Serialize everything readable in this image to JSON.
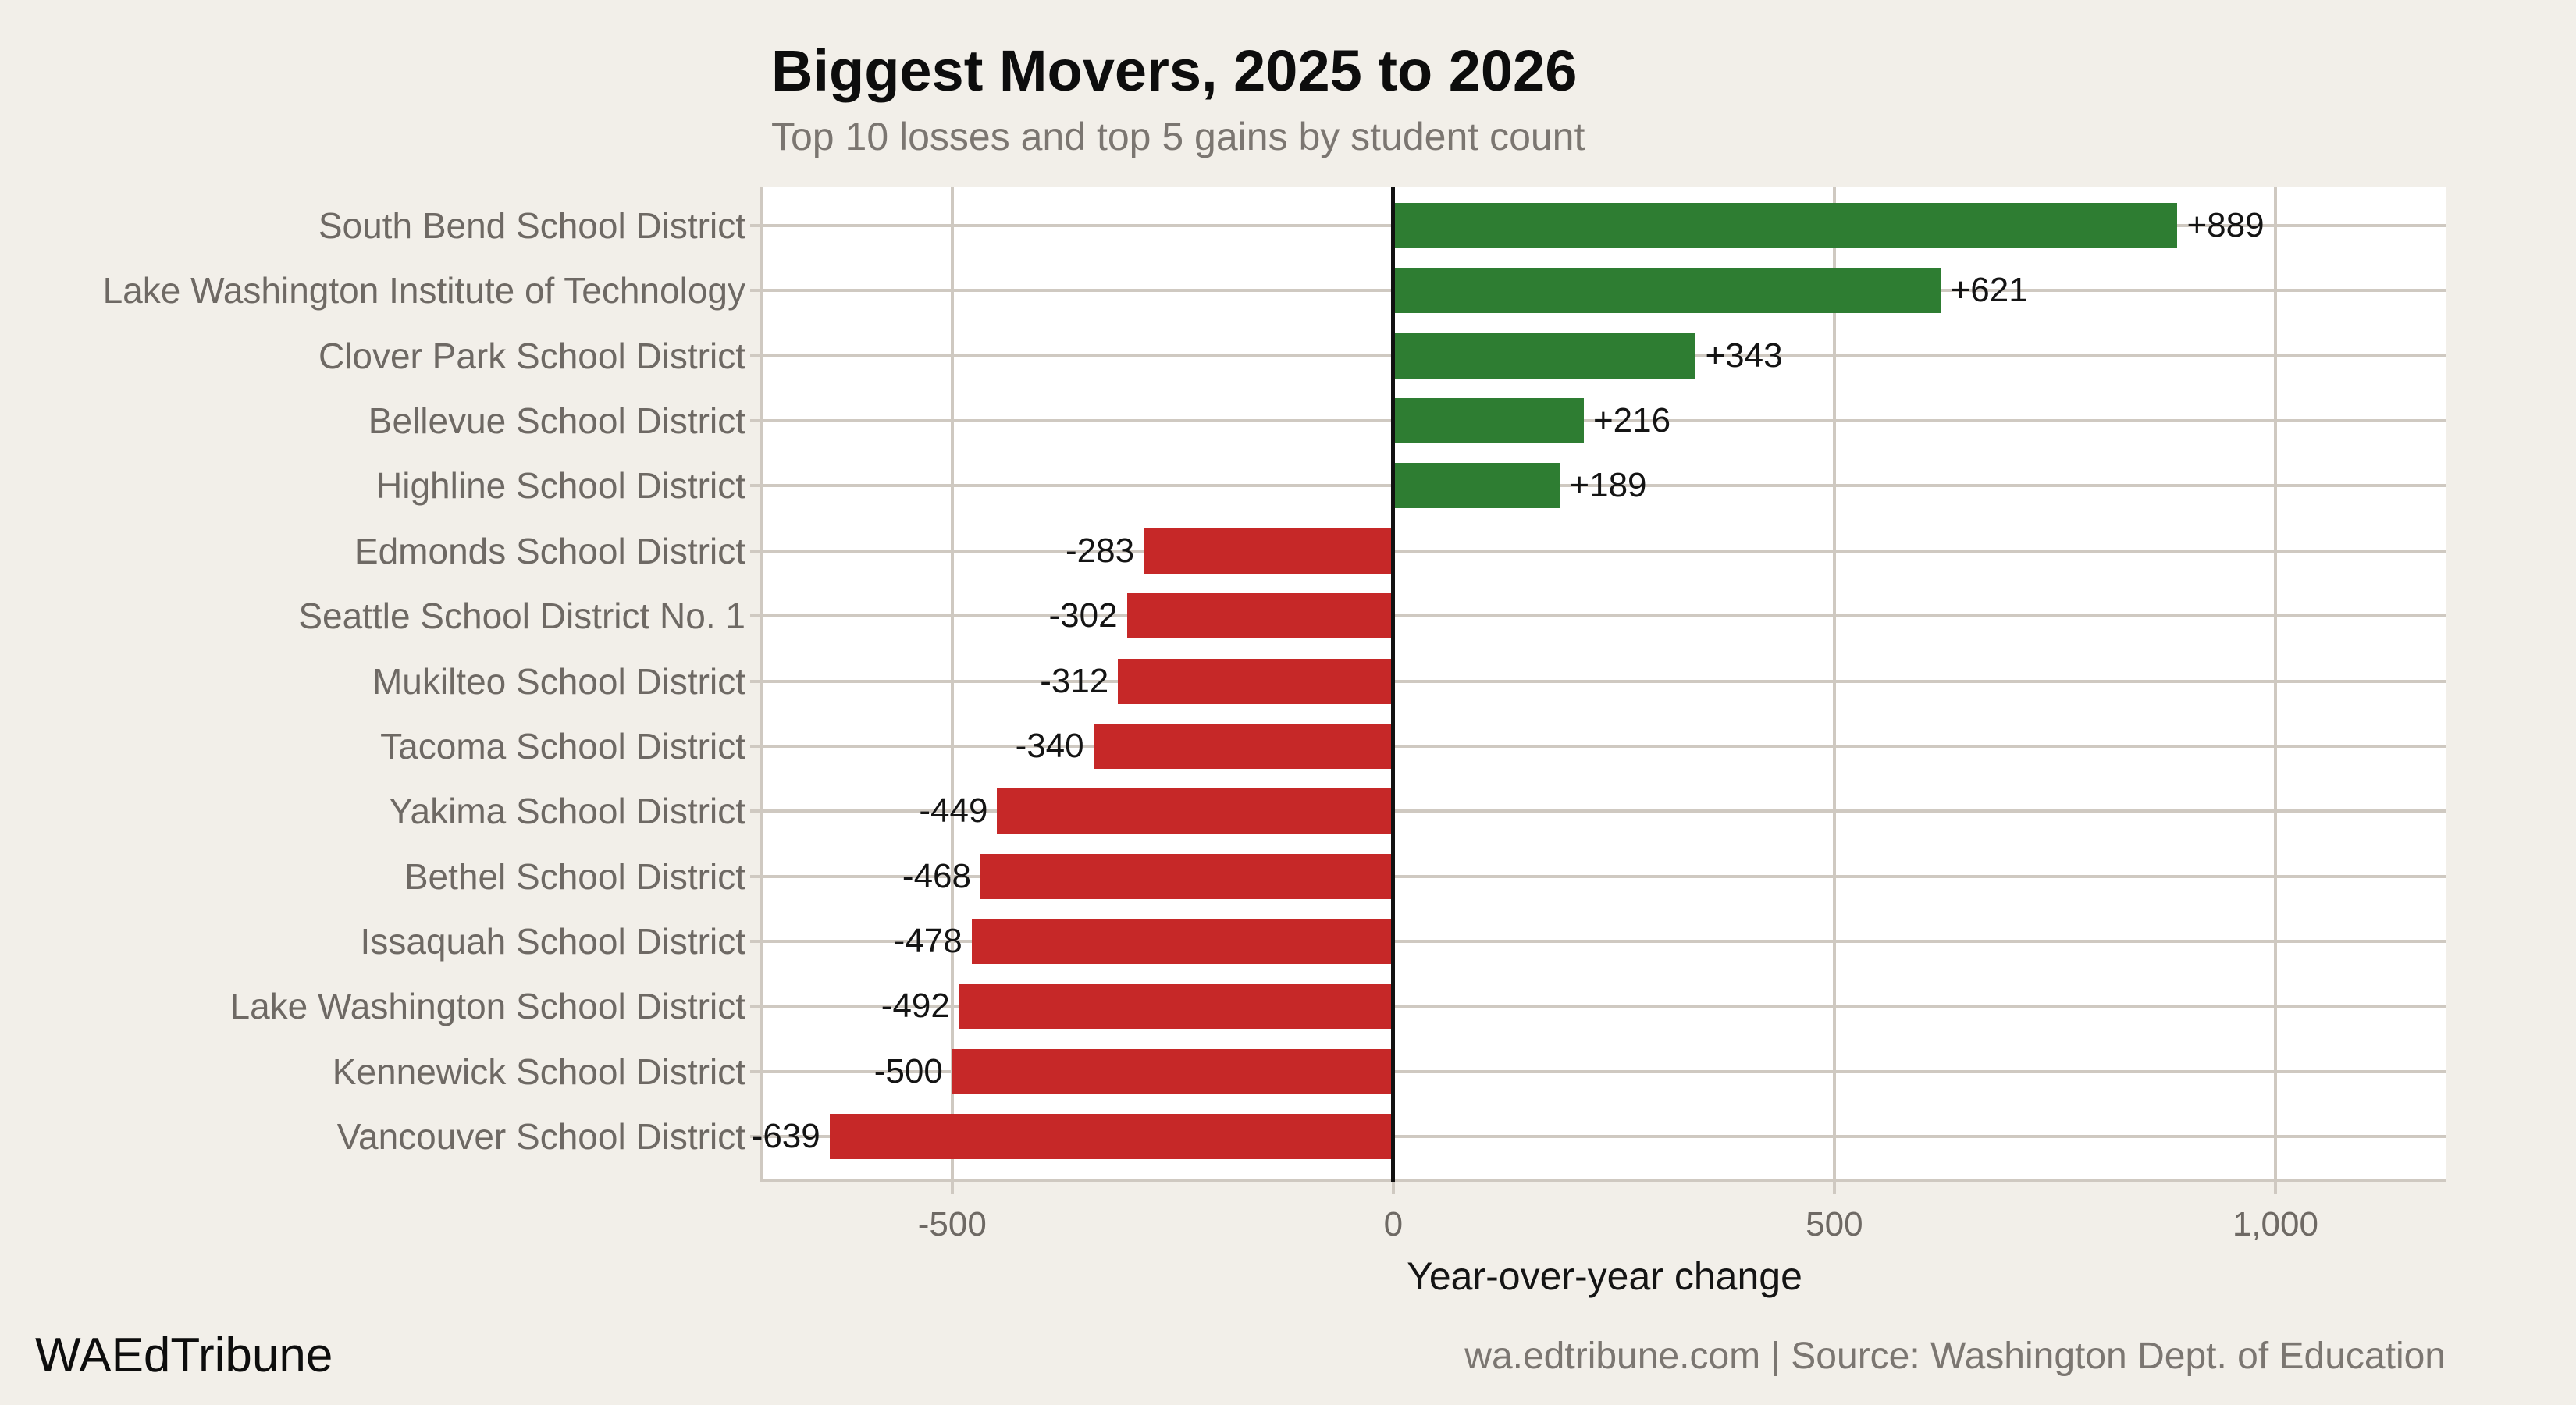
{
  "title": "Biggest Movers, 2025 to 2026",
  "subtitle": "Top 10 losses and top 5 gains by student count",
  "chart_data": {
    "type": "bar",
    "orientation": "horizontal",
    "title": "Biggest Movers, 2025 to 2026",
    "subtitle": "Top 10 losses and top 5 gains by student count",
    "xlabel": "Year-over-year change",
    "ylabel": "",
    "categories": [
      "South Bend School District",
      "Lake Washington Institute of Technology",
      "Clover Park School District",
      "Bellevue School District",
      "Highline School District",
      "Edmonds School District",
      "Seattle School District No. 1",
      "Mukilteo School District",
      "Tacoma School District",
      "Yakima School District",
      "Bethel School District",
      "Issaquah School District",
      "Lake Washington School District",
      "Kennewick School District",
      "Vancouver School District"
    ],
    "values": [
      889,
      621,
      343,
      216,
      189,
      -283,
      -302,
      -312,
      -340,
      -449,
      -468,
      -478,
      -492,
      -500,
      -639
    ],
    "value_labels": [
      "+889",
      "+621",
      "+343",
      "+216",
      "+189",
      "-283",
      "-302",
      "-312",
      "-340",
      "-449",
      "-468",
      "-478",
      "-492",
      "-500",
      "-639"
    ],
    "x_ticks": {
      "values": [
        -500,
        0,
        500,
        1000
      ],
      "labels": [
        "-500",
        "0",
        "500",
        "1,000"
      ]
    },
    "xlim": [
      -714,
      1193
    ],
    "grid": true,
    "zero_line": true,
    "legend": "none"
  },
  "footer": {
    "brand": "WAEdTribune",
    "source": "wa.edtribune.com | Source: Washington Dept. of Education"
  },
  "colors": {
    "gain": "#2e7d32",
    "loss": "#c62828",
    "background": "#f2efe9",
    "panel": "#ffffff",
    "gridline": "#cfc9c1",
    "zero_line": "#111111",
    "label_text": "#141414",
    "axis_text": "#6e6964",
    "muted_text": "#7b7671"
  }
}
